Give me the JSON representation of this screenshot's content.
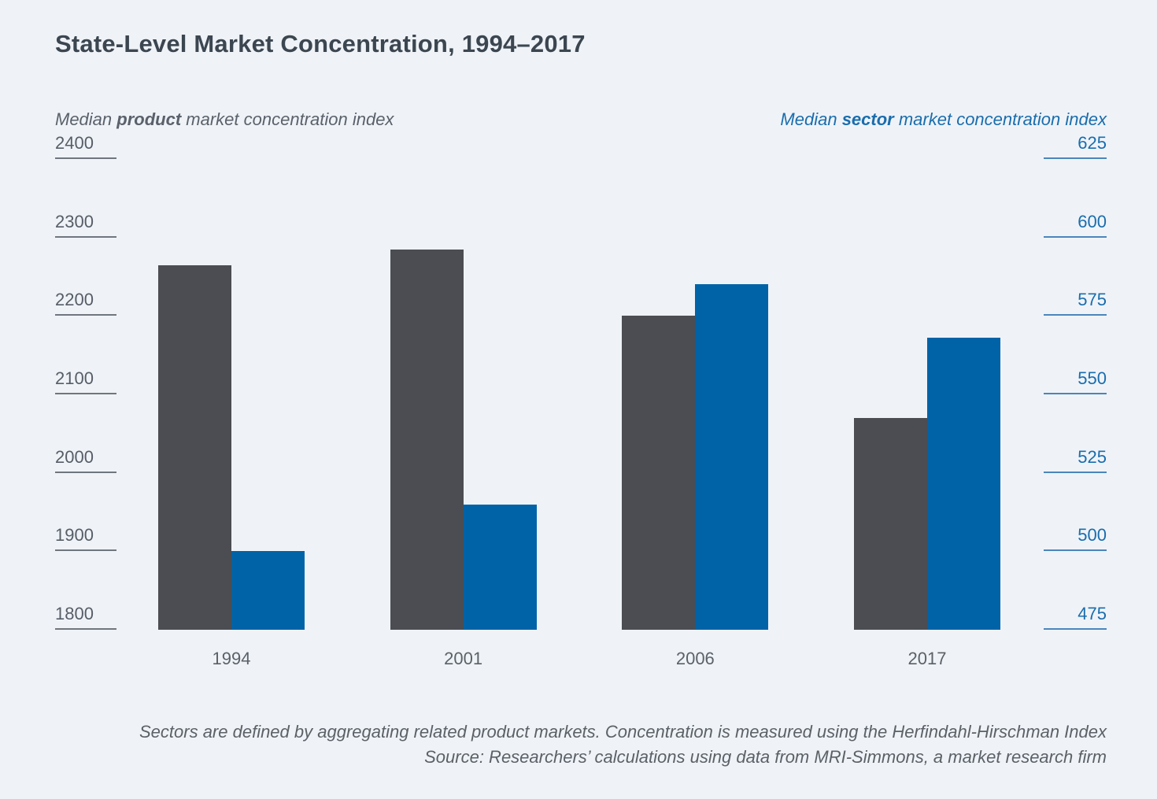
{
  "title": "State-Level Market Concentration, 1994–2017",
  "axes": {
    "left": {
      "caption_prefix": "Median ",
      "caption_emph": "product",
      "caption_suffix": " market concentration index"
    },
    "right": {
      "caption_prefix": "Median ",
      "caption_emph": "sector",
      "caption_suffix": " market concentration index"
    }
  },
  "colors": {
    "background": "#eff3f8",
    "product_bar": "#4b4d52",
    "sector_bar": "#0063a7",
    "left_axis_text": "#565d66",
    "right_axis_text": "#1a6dad"
  },
  "chart_data": {
    "type": "bar",
    "title": "State-Level Market Concentration, 1994–2017",
    "categories": [
      "1994",
      "2001",
      "2006",
      "2017"
    ],
    "series": [
      {
        "name": "Median product market concentration index",
        "axis": "left",
        "color": "#4b4d52",
        "values": [
          2265,
          2285,
          2200,
          2070
        ]
      },
      {
        "name": "Median sector market concentration index",
        "axis": "right",
        "color": "#0063a7",
        "values": [
          500,
          515,
          585,
          568
        ]
      }
    ],
    "left_axis": {
      "label": "Median product market concentration index",
      "range": [
        1800,
        2400
      ],
      "ticks": [
        2400,
        2300,
        2200,
        2100,
        2000,
        1900,
        1800
      ]
    },
    "right_axis": {
      "label": "Median sector market concentration index",
      "range": [
        475,
        625
      ],
      "ticks": [
        625,
        600,
        575,
        550,
        525,
        500,
        475
      ]
    },
    "grid": false,
    "legend_position": "axis-captions-top"
  },
  "footnotes": [
    "Sectors are defined by aggregating related product markets. Concentration is measured using the Herfindahl-Hirschman Index",
    "Source: Researchers’ calculations using data from MRI-Simmons, a market research firm"
  ]
}
